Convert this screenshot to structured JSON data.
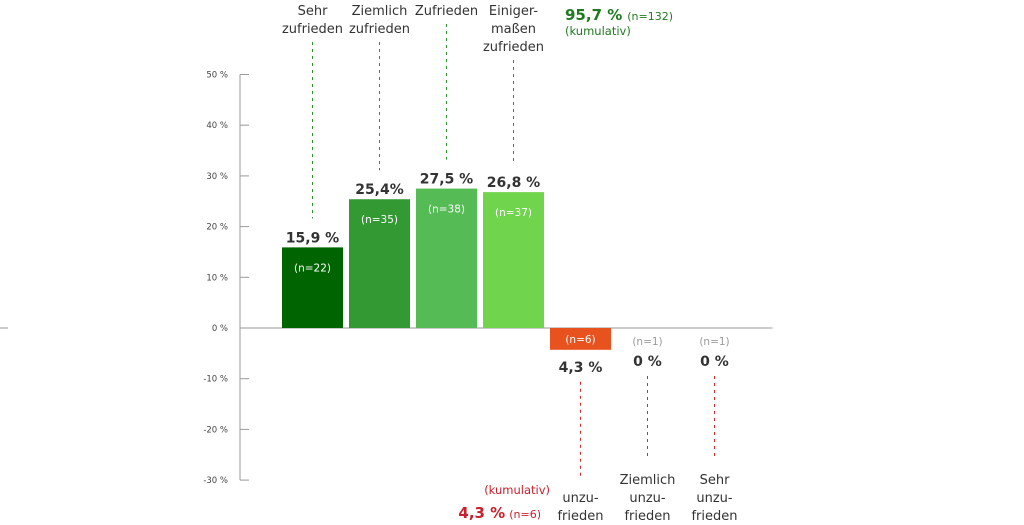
{
  "chart_data": {
    "type": "bar",
    "categories": [
      [
        "Sehr",
        "zufrieden"
      ],
      [
        "Ziemlich",
        "zufrieden"
      ],
      [
        "Zufrieden"
      ],
      [
        "Einiger-",
        "maßen",
        "zufrieden"
      ],
      [
        "unzu-",
        "frieden"
      ],
      [
        "Ziemlich",
        "unzu-",
        "frieden"
      ],
      [
        "Sehr",
        "unzu-",
        "frieden"
      ]
    ],
    "values": [
      15.9,
      25.4,
      27.5,
      26.8,
      -4.3,
      0,
      0
    ],
    "value_labels": [
      "15,9 %",
      "25,4%",
      "27,5 %",
      "26,8 %",
      "4,3 %",
      "0 %",
      "0 %"
    ],
    "n_labels": [
      "(n=22)",
      "(n=35)",
      "(n=38)",
      "(n=37)",
      "(n=6)",
      "(n=1)",
      "(n=1)"
    ],
    "colors": [
      "#006400",
      "#339933",
      "#55bb55",
      "#70d44d",
      "#e8521e",
      null,
      null
    ],
    "ylim": [
      -30,
      50
    ],
    "yticks": [
      50,
      40,
      30,
      20,
      10,
      0,
      -10,
      -20,
      -30
    ],
    "ytick_labels": [
      "50 %",
      "40 %",
      "30 %",
      "20 %",
      "10 %",
      "0 %",
      "-10 %",
      "-20 %",
      "-30 %"
    ],
    "grid": false,
    "leader_colors": {
      "positive": "#2f8f2f",
      "negative": "#d02a2a"
    },
    "annotations": {
      "positive_cumulative": {
        "value": "95,7 %",
        "n": "(n=132)",
        "note": "(kumulativ)",
        "color": "#1f7a1f"
      },
      "negative_cumulative": {
        "value": "4,3 %",
        "n": "(n=6)",
        "note": "(kumulativ)",
        "color": "#c8202d"
      }
    }
  }
}
